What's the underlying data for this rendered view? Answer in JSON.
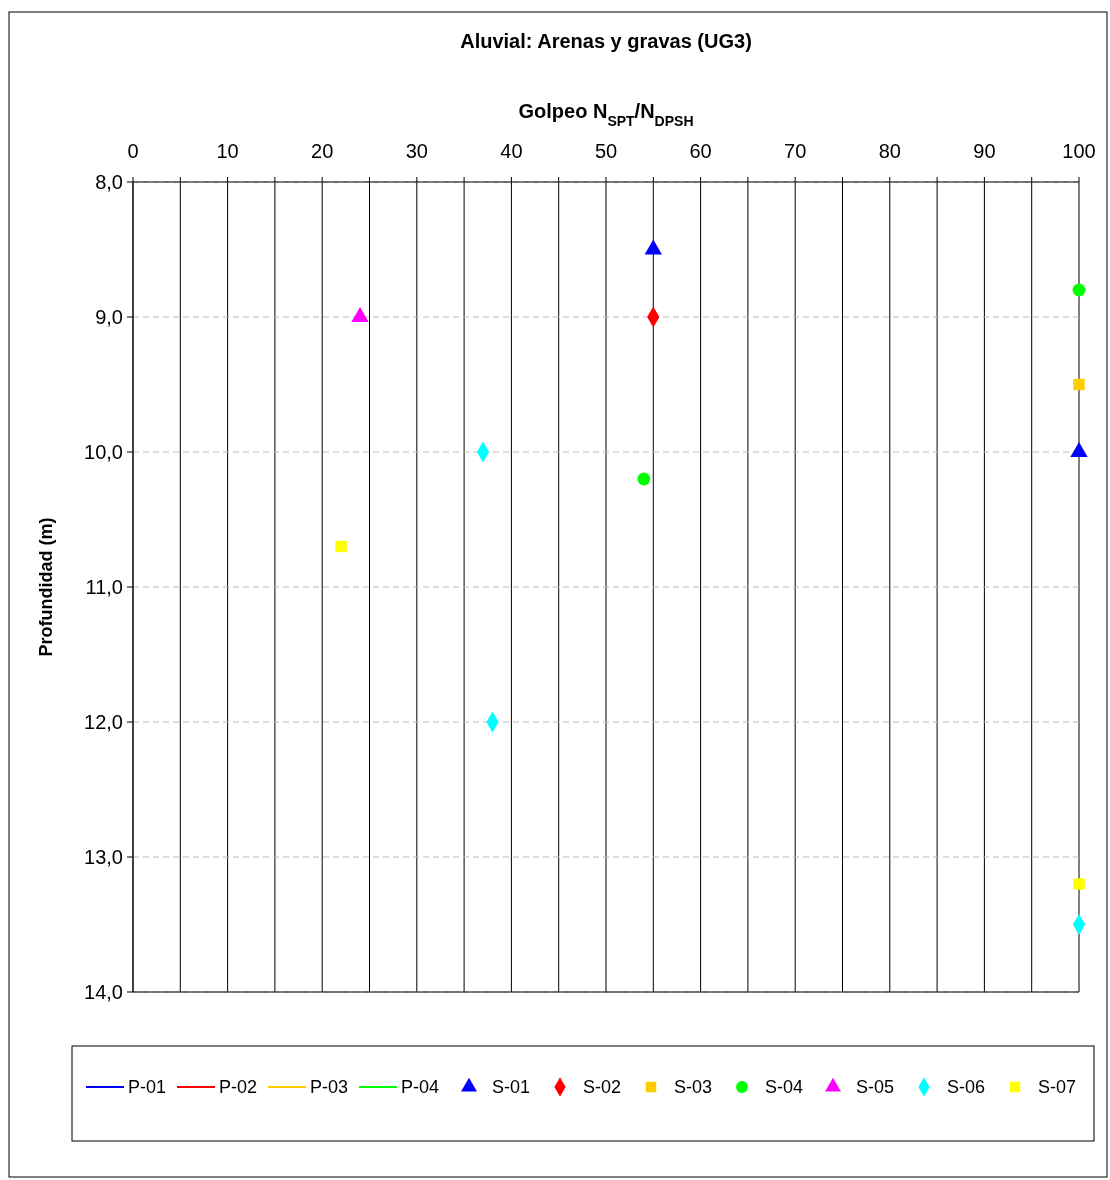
{
  "chart_data": {
    "type": "scatter",
    "title": "Aluvial: Arenas y gravas (UG3)",
    "xlabel": "Golpeo N$_{SPT}$/N$_{DPSH}$",
    "ylabel": "Profundidad (m)",
    "xlim": [
      0,
      100
    ],
    "xticks": [
      0,
      {
        "value": 5,
        "label": null
      },
      10,
      {
        "value": 15,
        "label": null
      },
      20,
      {
        "value": 25,
        "label": null
      },
      30,
      {
        "value": 35,
        "label": null
      },
      40,
      {
        "value": 45,
        "label": null
      },
      50,
      {
        "value": 55,
        "label": null
      },
      60,
      {
        "value": 65,
        "label": null
      },
      70,
      {
        "value": 75,
        "label": null
      },
      80,
      {
        "value": 85,
        "label": null
      },
      90,
      {
        "value": 95,
        "label": null
      },
      100
    ],
    "ylim": [
      14,
      8
    ],
    "yticks": [
      {
        "value": 8,
        "label": "8,0"
      },
      {
        "value": 9,
        "label": "9,0"
      },
      {
        "value": 10,
        "label": "10,0"
      },
      {
        "value": 11,
        "label": "11,0"
      },
      {
        "value": 12,
        "label": "12,0"
      },
      {
        "value": 13,
        "label": "13,0"
      },
      {
        "value": 14,
        "label": "14,0"
      }
    ],
    "grid": true,
    "legend": "bottom",
    "series": [
      {
        "name": "P-01",
        "type": "line",
        "color": "#0000ff",
        "marker": "none",
        "line_style": "solid"
      },
      {
        "name": "P-02",
        "type": "line",
        "color": "#ff0000",
        "marker": "none",
        "line_style": "solid"
      },
      {
        "name": "P-03",
        "type": "line",
        "color": "#ffcc00",
        "marker": "none",
        "line_style": "solid"
      },
      {
        "name": "P-04",
        "type": "line",
        "color": "#00ff00",
        "marker": "none",
        "line_style": "solid"
      },
      {
        "name": "S-01",
        "color": "#0000ff",
        "marker": "triangle",
        "x": [
          55,
          100
        ],
        "values": [
          8.5,
          10.0
        ]
      },
      {
        "name": "S-02",
        "color": "#ff0000",
        "marker": "diamond",
        "x": [
          55
        ],
        "values": [
          9.0
        ]
      },
      {
        "name": "S-03",
        "color": "#ffcc00",
        "marker": "square",
        "x": [
          100
        ],
        "values": [
          9.5
        ]
      },
      {
        "name": "S-04",
        "color": "#00ff00",
        "marker": "circle",
        "x": [
          100,
          54
        ],
        "values": [
          8.8,
          10.2
        ]
      },
      {
        "name": "S-05",
        "color": "#ff00ff",
        "marker": "triangle",
        "x": [
          24
        ],
        "values": [
          9.0
        ]
      },
      {
        "name": "S-06",
        "color": "#00ffff",
        "marker": "diamond",
        "x": [
          37,
          38,
          100
        ],
        "values": [
          10.0,
          12.0,
          13.5
        ]
      },
      {
        "name": "S-07",
        "color": "#ffff00",
        "marker": "square",
        "x": [
          22,
          100
        ],
        "values": [
          10.7,
          13.2
        ]
      }
    ]
  }
}
